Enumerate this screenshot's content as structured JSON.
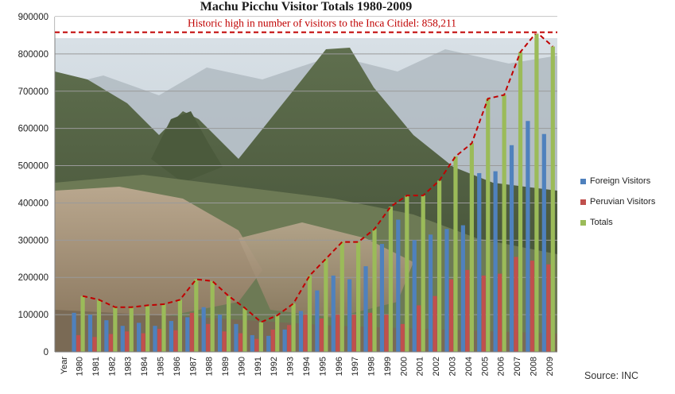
{
  "chart_data": {
    "type": "bar",
    "title": "Machu Picchu Visitor Totals 1980-2009",
    "xlabel": "Year",
    "ylabel": "",
    "ylim": [
      0,
      900000
    ],
    "yticks": [
      0,
      100000,
      200000,
      300000,
      400000,
      500000,
      600000,
      700000,
      800000,
      900000
    ],
    "grid": true,
    "legend_position": "right",
    "categories": [
      "1980",
      "1981",
      "1982",
      "1983",
      "1984",
      "1985",
      "1986",
      "1987",
      "1988",
      "1989",
      "1990",
      "1991",
      "1992",
      "1993",
      "1994",
      "1995",
      "1996",
      "1997",
      "1998",
      "1999",
      "2000",
      "2001",
      "2002",
      "2003",
      "2004",
      "2005",
      "2006",
      "2007",
      "2008",
      "2009"
    ],
    "series": [
      {
        "name": "Foreign Visitors",
        "color": "#4f81bd",
        "values": [
          105000,
          100000,
          85000,
          70000,
          78000,
          70000,
          83000,
          93000,
          120000,
          100000,
          75000,
          45000,
          43000,
          60000,
          110000,
          165000,
          205000,
          195000,
          230000,
          290000,
          355000,
          300000,
          315000,
          330000,
          340000,
          480000,
          485000,
          555000,
          620000,
          585000
        ]
      },
      {
        "name": "Peruvian Visitors",
        "color": "#c0504d",
        "values": [
          45000,
          40000,
          48000,
          55000,
          50000,
          62000,
          58000,
          105000,
          75000,
          55000,
          50000,
          35000,
          60000,
          72000,
          100000,
          90000,
          100000,
          100000,
          105000,
          100000,
          75000,
          125000,
          150000,
          195000,
          220000,
          205000,
          210000,
          255000,
          245000,
          235000
        ]
      },
      {
        "name": "Totals",
        "color": "#9bbb59",
        "values": [
          150000,
          140000,
          120000,
          120000,
          125000,
          128000,
          140000,
          195000,
          190000,
          150000,
          118000,
          80000,
          98000,
          130000,
          205000,
          250000,
          295000,
          295000,
          330000,
          390000,
          420000,
          420000,
          460000,
          525000,
          560000,
          680000,
          690000,
          805000,
          858211,
          820000
        ]
      }
    ],
    "trend_line": {
      "series": "Totals",
      "color": "#c00000",
      "style": "dashed"
    },
    "annotation": {
      "text": "Historic high in number of visitors to the Inca Citidel: 858,211",
      "value": 858211,
      "color": "#c00000"
    }
  },
  "source_note": "Source: INC"
}
